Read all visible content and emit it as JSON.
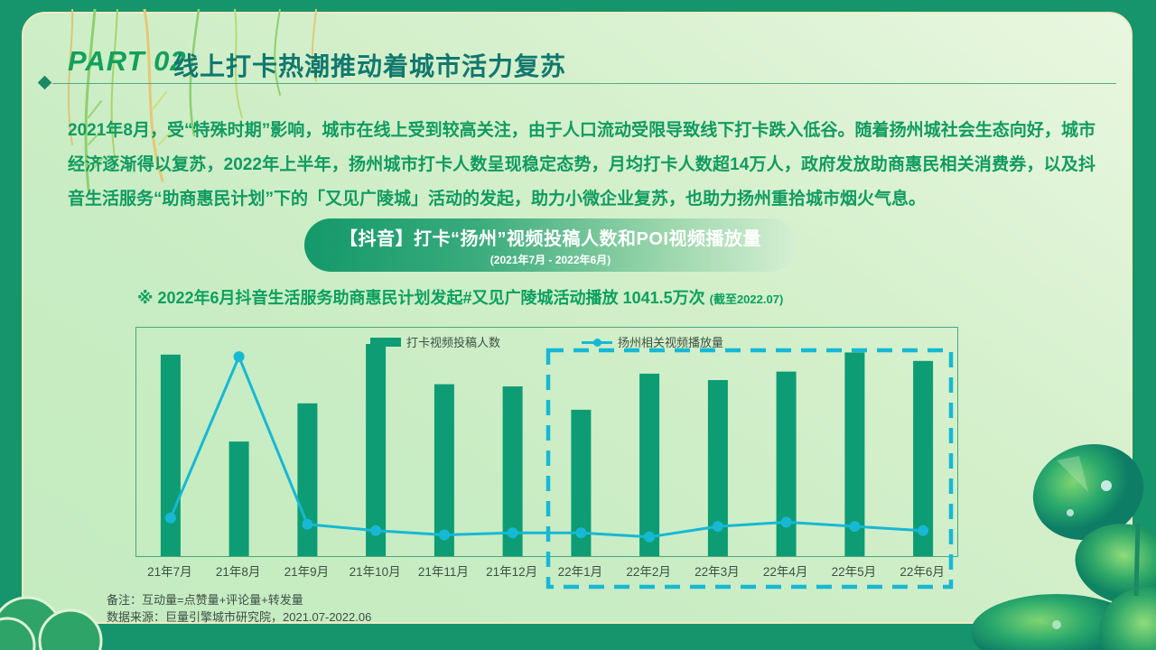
{
  "slide": {
    "part_label": "PART 02",
    "title": "线上打卡热潮推动着城市活力复苏",
    "paragraph": "2021年8月，受“特殊时期”影响，城市在线上受到较高关注，由于人口流动受限导致线下打卡跌入低谷。随着扬州城社会生态向好，城市经济逐渐得以复苏，2022年上半年，扬州城市打卡人数呈现稳定态势，月均打卡人数超14万人，政府发放助商惠民相关消费券，以及抖音生活服务“助商惠民计划”下的「又见广陵城」活动的发起，助力小微企业复苏，也助力扬州重拾城市烟火气息。",
    "banner": {
      "title": "【抖音】打卡“扬州”视频投稿人数和POI视频播放量",
      "subtitle": "(2021年7月 - 2022年6月)"
    },
    "note": {
      "text": "※ 2022年6月抖音生活服务助商惠民计划发起#又见广陵城活动播放  1041.5万次 ",
      "asof": "(截至2022.07)"
    },
    "footer": {
      "line1": "备注：互动量=点赞量+评论量+转发量",
      "line2": "数据来源：巨量引擎城市研究院，2021.07-2022.06"
    }
  },
  "legend": [
    {
      "label": "打卡视频投稿人数",
      "type": "bar",
      "color": "#0d9c74"
    },
    {
      "label": "扬州相关视频播放量",
      "type": "line",
      "color": "#17b8d4"
    }
  ],
  "chart_data": {
    "type": "bar",
    "categories": [
      "21年7月",
      "21年8月",
      "21年9月",
      "21年10月",
      "21年11月",
      "21年12月",
      "22年1月",
      "22年2月",
      "22年3月",
      "22年4月",
      "22年5月",
      "22年6月"
    ],
    "series": [
      {
        "name": "打卡视频投稿人数",
        "type": "bar",
        "color": "#0d9c74",
        "values": [
          95,
          54,
          72,
          100,
          81,
          80,
          69,
          86,
          83,
          87,
          96,
          92
        ]
      },
      {
        "name": "扬州相关视频播放量",
        "type": "line",
        "color": "#17b8d4",
        "values": [
          18,
          94,
          15,
          12,
          10,
          11,
          11,
          9,
          14,
          16,
          14,
          12
        ]
      }
    ],
    "title": "【抖音】打卡“扬州”视频投稿人数和POI视频播放量",
    "subtitle": "(2021年7月 - 2022年6月)",
    "xlabel": "",
    "ylabel": "",
    "ylim": [
      0,
      100
    ],
    "value_scale": "relative 0-100 (no numeric axis shown, heights estimated)",
    "grid": false,
    "legend_position": "top-center-inside",
    "highlight_region": {
      "from": "22年1月",
      "to": "22年6月",
      "style": "cyan-dashed-box"
    }
  },
  "colors": {
    "outer_bg": "#16946c",
    "panel_bg": "#c8ecc3",
    "panel_border": "#efeac2",
    "accent_green": "#13a05c",
    "title_teal": "#10786e",
    "paragraph_green": "#0f9b60",
    "bar": "#0d9c74",
    "line": "#17b8d4",
    "axis_text": "#3d5244",
    "dashed_box": "#17b8d4"
  }
}
